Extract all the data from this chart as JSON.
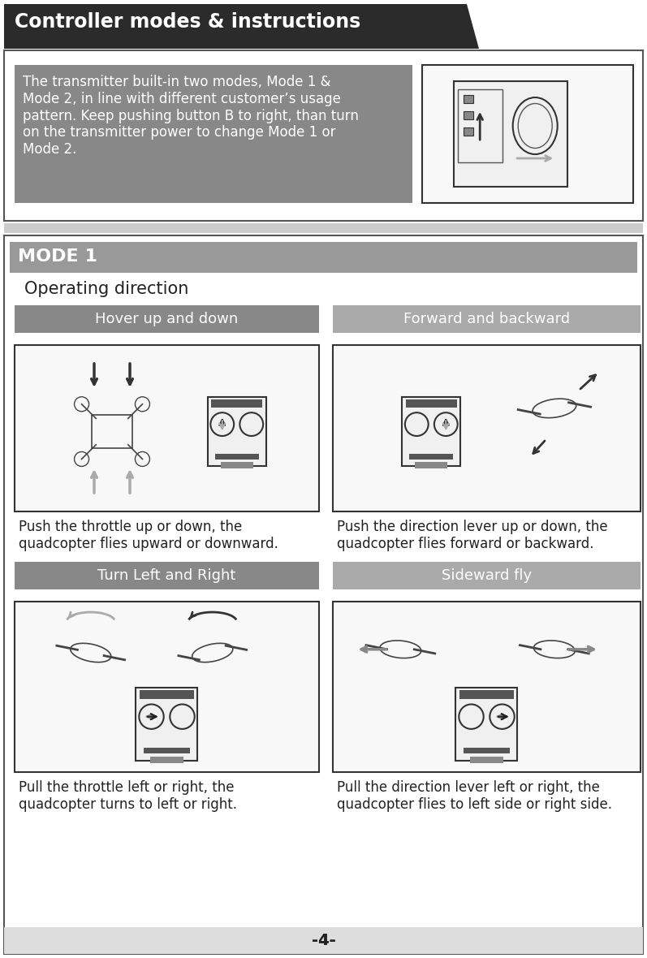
{
  "page_bg": "#ffffff",
  "white_bg": "#ffffff",
  "title_bg": "#2b2b2b",
  "title_text": "Controller modes & instructions",
  "title_text_color": "#ffffff",
  "title_fontsize": 17,
  "intro_box_bg": "#888888",
  "intro_text": "The transmitter built-in two modes, Mode 1 &\nMode 2, in line with different customer’s usage\npattern. Keep pushing button B to right, than turn\non the transmitter power to change Mode 1 or\nMode 2.",
  "intro_text_color": "#ffffff",
  "intro_fontsize": 12,
  "mode_bar_bg": "#999999",
  "mode_bar_text": "MODE 1",
  "mode_bar_text_color": "#ffffff",
  "mode_bar_fontsize": 16,
  "op_dir_text": "Operating direction",
  "op_dir_fontsize": 15,
  "label_bg": "#888888",
  "label_text_color": "#ffffff",
  "label_fontsize": 13,
  "section1_label": "Hover up and down",
  "section2_label": "Forward and backward",
  "section3_label": "Turn Left and Right",
  "section4_label": "Sideward fly",
  "desc1": "Push the throttle up or down, the\nquadcopter flies upward or downward.",
  "desc2": "Push the direction lever up or down, the\nquadcopter flies forward or backward.",
  "desc3": "Pull the throttle left or right, the\nquadcopter turns to left or right.",
  "desc4": "Pull the direction lever left or right, the\nquadcopter flies to left side or right side.",
  "desc_fontsize": 12,
  "page_num": "−4−",
  "page_num_fontsize": 14,
  "border_color": "#555555",
  "img_border_color": "#333333",
  "separator_color": "#cccccc",
  "light_gray": "#e8e8e8"
}
